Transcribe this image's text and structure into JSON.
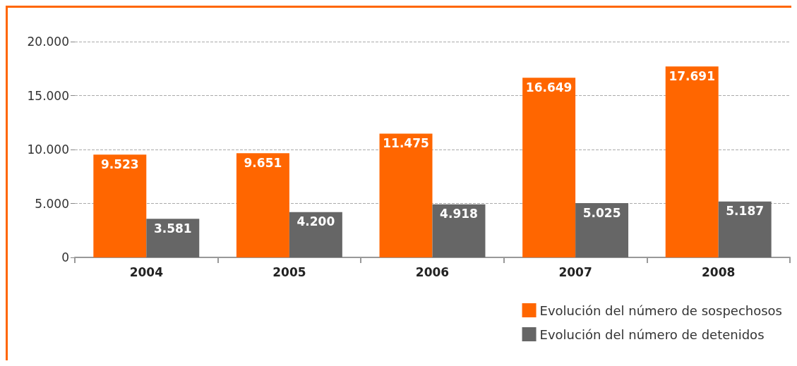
{
  "chart_data": {
    "type": "bar",
    "categories": [
      "2004",
      "2005",
      "2006",
      "2007",
      "2008"
    ],
    "series": [
      {
        "name": "Evolución del número de sospechosos",
        "color": "#ff6600",
        "values": [
          9523,
          9651,
          11475,
          16649,
          17691
        ],
        "value_labels": [
          "9.523",
          "9.651",
          "11.475",
          "16.649",
          "17.691"
        ]
      },
      {
        "name": "Evolución del número de detenidos",
        "color": "#666666",
        "values": [
          3581,
          4200,
          4918,
          5025,
          5187
        ],
        "value_labels": [
          "3.581",
          "4.200",
          "4.918",
          "5.025",
          "5.187"
        ]
      }
    ],
    "ylim": [
      0,
      20000
    ],
    "yticks": [
      {
        "value": 0,
        "label": "0"
      },
      {
        "value": 5000,
        "label": "5.000"
      },
      {
        "value": 10000,
        "label": "10.000"
      },
      {
        "value": 15000,
        "label": "15.000"
      },
      {
        "value": 20000,
        "label": "20.000"
      }
    ],
    "grid": "y",
    "legend": "bottom right"
  }
}
